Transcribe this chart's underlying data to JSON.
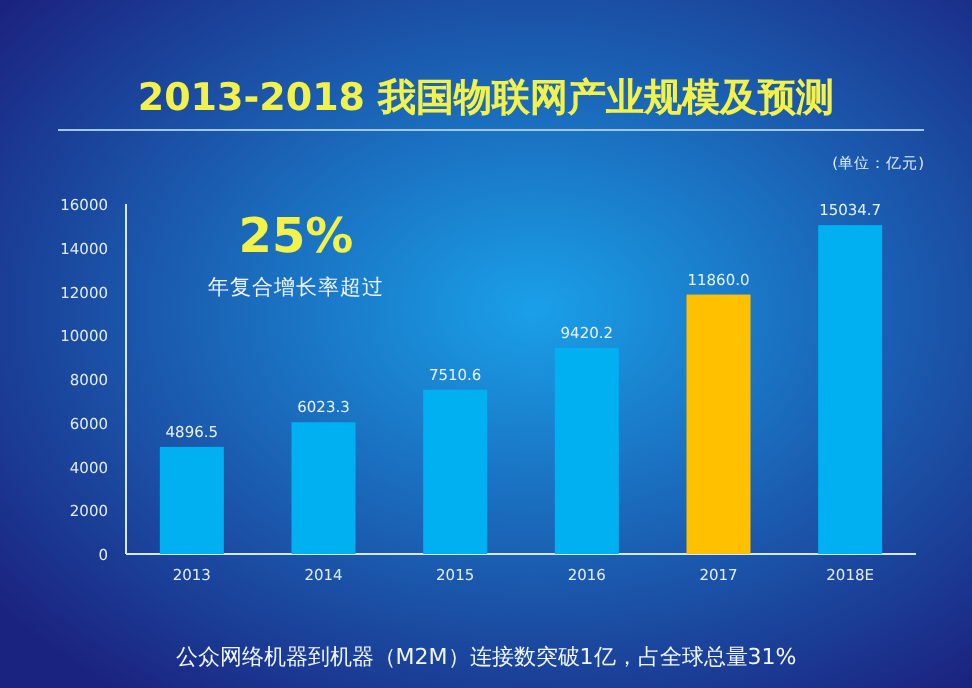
{
  "chart_data": {
    "type": "bar",
    "title": "2013-2018 我国物联网产业规模及预测",
    "categories": [
      "2013",
      "2014",
      "2015",
      "2016",
      "2017",
      "2018E"
    ],
    "values": [
      4896.5,
      6023.3,
      7510.6,
      9420.2,
      11860.0,
      15034.7
    ],
    "colors": [
      "#00b0f0",
      "#00b0f0",
      "#00b0f0",
      "#00b0f0",
      "#ffc000",
      "#00b0f0"
    ],
    "value_labels": [
      "4896.5",
      "6023.3",
      "7510.6",
      "9420.2",
      "11860.0",
      "15034.7"
    ],
    "ylim": [
      0,
      16000
    ],
    "yticks": [
      0,
      2000,
      4000,
      6000,
      8000,
      10000,
      12000,
      14000,
      16000
    ],
    "annotations": [
      "(单位：亿元)",
      "25%",
      "年复合增长率超过",
      "公众网络机器到机器（M2M）连接数突破1亿，占全球总量31%"
    ]
  }
}
